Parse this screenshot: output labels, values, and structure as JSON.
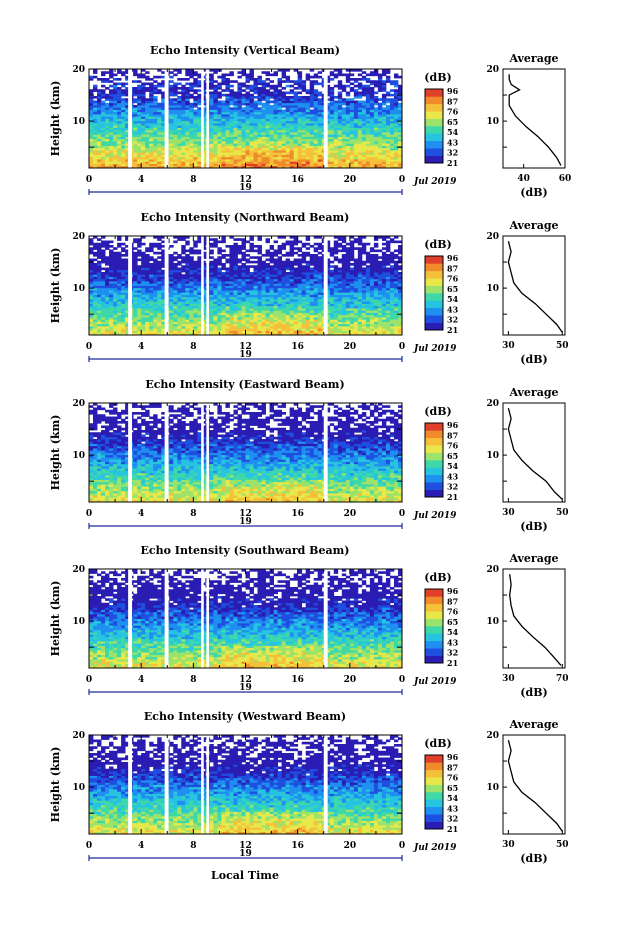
{
  "figure": {
    "xlabel": "Local Time",
    "colorbar_ticks": [
      "96",
      "87",
      "76",
      "65",
      "54",
      "43",
      "32",
      "21"
    ],
    "colorbar_unit": "(dB)",
    "colors": {
      "scale": [
        "#2a1db3",
        "#1f4fe0",
        "#1f8ff0",
        "#27c4e0",
        "#3fd8a8",
        "#9be36a",
        "#e8e84a",
        "#f5c03a",
        "#f08a2a",
        "#e0402a"
      ],
      "axis": "#000000",
      "date_axis": "#1e2ba0"
    }
  },
  "panels": [
    {
      "title": "Echo Intensity (Vertical Beam)",
      "ylabel": "Height (km)",
      "date_label": "Jul 2019",
      "date_tick": "19",
      "avg": {
        "title": "Average",
        "xticks": [
          "40",
          "60"
        ],
        "xlabel": "(dB)"
      }
    },
    {
      "title": "Echo Intensity (Northward Beam)",
      "ylabel": "Height (km)",
      "date_label": "Jul 2019",
      "date_tick": "19",
      "avg": {
        "title": "Average",
        "xticks": [
          "30",
          "50"
        ],
        "xlabel": "(dB)"
      }
    },
    {
      "title": "Echo Intensity (Eastward Beam)",
      "ylabel": "Height (km)",
      "date_label": "Jul 2019",
      "date_tick": "19",
      "avg": {
        "title": "Average",
        "xticks": [
          "30",
          "50"
        ],
        "xlabel": "(dB)"
      }
    },
    {
      "title": "Echo Intensity (Southward Beam)",
      "ylabel": "Height (km)",
      "date_label": "Jul 2019",
      "date_tick": "19",
      "avg": {
        "title": "Average",
        "xticks": [
          "30",
          "70"
        ],
        "xlabel": "(dB)"
      }
    },
    {
      "title": "Echo Intensity (Westward Beam)",
      "ylabel": "Height (km)",
      "date_label": "Jul 2019",
      "date_tick": "19",
      "avg": {
        "title": "Average",
        "xticks": [
          "30",
          "50"
        ],
        "xlabel": "(dB)"
      }
    }
  ],
  "chart_data": [
    {
      "type": "heatmap",
      "title": "Echo Intensity (Vertical Beam)",
      "ylabel": "Height (km)",
      "x_ticks": [
        "0",
        "4",
        "8",
        "12",
        "16",
        "20",
        "0"
      ],
      "y_ticks": [
        "10",
        "20"
      ],
      "xlim": [
        0,
        24
      ],
      "ylim": [
        1,
        20
      ],
      "colorbar": {
        "label": "(dB)",
        "range": [
          21,
          96
        ]
      },
      "data_gaps_hours": [
        [
          3.0,
          3.3
        ],
        [
          5.8,
          6.1
        ],
        [
          8.6,
          8.8
        ],
        [
          9.0,
          9.2
        ],
        [
          18.0,
          18.3
        ]
      ],
      "average_profile": {
        "xlim": [
          30,
          60
        ],
        "x_ticks": [
          "40",
          "60"
        ],
        "xlabel": "(dB)",
        "height_km": [
          1.5,
          3,
          5,
          7,
          9,
          11,
          13,
          15,
          16,
          17,
          18,
          19
        ],
        "db": [
          58,
          56,
          52,
          47,
          41,
          36,
          33,
          33,
          38,
          34,
          33,
          33
        ]
      }
    },
    {
      "type": "heatmap",
      "title": "Echo Intensity (Northward Beam)",
      "ylabel": "Height (km)",
      "x_ticks": [
        "0",
        "4",
        "8",
        "12",
        "16",
        "20",
        "0"
      ],
      "y_ticks": [
        "10",
        "20"
      ],
      "xlim": [
        0,
        24
      ],
      "ylim": [
        1,
        20
      ],
      "colorbar": {
        "label": "(dB)",
        "range": [
          21,
          96
        ]
      },
      "data_gaps_hours": [
        [
          3.0,
          3.3
        ],
        [
          5.8,
          6.1
        ],
        [
          8.6,
          8.8
        ],
        [
          9.0,
          9.2
        ],
        [
          18.0,
          18.3
        ]
      ],
      "average_profile": {
        "xlim": [
          28,
          51
        ],
        "x_ticks": [
          "30",
          "50"
        ],
        "xlabel": "(dB)",
        "height_km": [
          1.5,
          3,
          5,
          7,
          9,
          11,
          13,
          15,
          17,
          19
        ],
        "db": [
          50,
          48,
          44,
          40,
          35,
          32,
          31,
          30,
          31,
          30
        ]
      }
    },
    {
      "type": "heatmap",
      "title": "Echo Intensity (Eastward Beam)",
      "ylabel": "Height (km)",
      "x_ticks": [
        "0",
        "4",
        "8",
        "12",
        "16",
        "20",
        "0"
      ],
      "y_ticks": [
        "10",
        "20"
      ],
      "xlim": [
        0,
        24
      ],
      "ylim": [
        1,
        20
      ],
      "colorbar": {
        "label": "(dB)",
        "range": [
          21,
          96
        ]
      },
      "data_gaps_hours": [
        [
          3.0,
          3.3
        ],
        [
          5.8,
          6.1
        ],
        [
          8.6,
          8.8
        ],
        [
          9.0,
          9.2
        ],
        [
          18.0,
          18.3
        ]
      ],
      "average_profile": {
        "xlim": [
          28,
          51
        ],
        "x_ticks": [
          "30",
          "50"
        ],
        "xlabel": "(dB)",
        "height_km": [
          1.5,
          3,
          5,
          7,
          9,
          11,
          13,
          15,
          17,
          19
        ],
        "db": [
          50,
          47,
          44,
          39,
          35,
          32,
          31,
          30,
          31,
          30
        ]
      }
    },
    {
      "type": "heatmap",
      "title": "Echo Intensity (Southward Beam)",
      "ylabel": "Height (km)",
      "x_ticks": [
        "0",
        "4",
        "8",
        "12",
        "16",
        "20",
        "0"
      ],
      "y_ticks": [
        "10",
        "20"
      ],
      "xlim": [
        0,
        24
      ],
      "ylim": [
        1,
        20
      ],
      "colorbar": {
        "label": "(dB)",
        "range": [
          21,
          96
        ]
      },
      "data_gaps_hours": [
        [
          3.0,
          3.3
        ],
        [
          5.8,
          6.1
        ],
        [
          8.6,
          8.8
        ],
        [
          9.0,
          9.2
        ],
        [
          18.0,
          18.3
        ]
      ],
      "average_profile": {
        "xlim": [
          26,
          72
        ],
        "x_ticks": [
          "30",
          "70"
        ],
        "xlabel": "(dB)",
        "height_km": [
          1.5,
          3,
          5,
          7,
          9,
          11,
          13,
          15,
          17,
          19
        ],
        "db": [
          69,
          64,
          57,
          48,
          40,
          34,
          32,
          31,
          32,
          31
        ]
      }
    },
    {
      "type": "heatmap",
      "title": "Echo Intensity (Westward Beam)",
      "ylabel": "Height (km)",
      "x_ticks": [
        "0",
        "4",
        "8",
        "12",
        "16",
        "20",
        "0"
      ],
      "y_ticks": [
        "10",
        "20"
      ],
      "xlim": [
        0,
        24
      ],
      "ylim": [
        1,
        20
      ],
      "colorbar": {
        "label": "(dB)",
        "range": [
          21,
          96
        ]
      },
      "data_gaps_hours": [
        [
          3.0,
          3.3
        ],
        [
          5.8,
          6.1
        ],
        [
          8.6,
          8.8
        ],
        [
          9.0,
          9.2
        ],
        [
          18.0,
          18.3
        ]
      ],
      "average_profile": {
        "xlim": [
          28,
          51
        ],
        "x_ticks": [
          "30",
          "50"
        ],
        "xlabel": "(dB)",
        "height_km": [
          1.5,
          3,
          5,
          7,
          9,
          11,
          13,
          15,
          17,
          19
        ],
        "db": [
          50,
          48,
          44,
          40,
          35,
          32,
          31,
          30,
          31,
          30
        ]
      }
    }
  ]
}
